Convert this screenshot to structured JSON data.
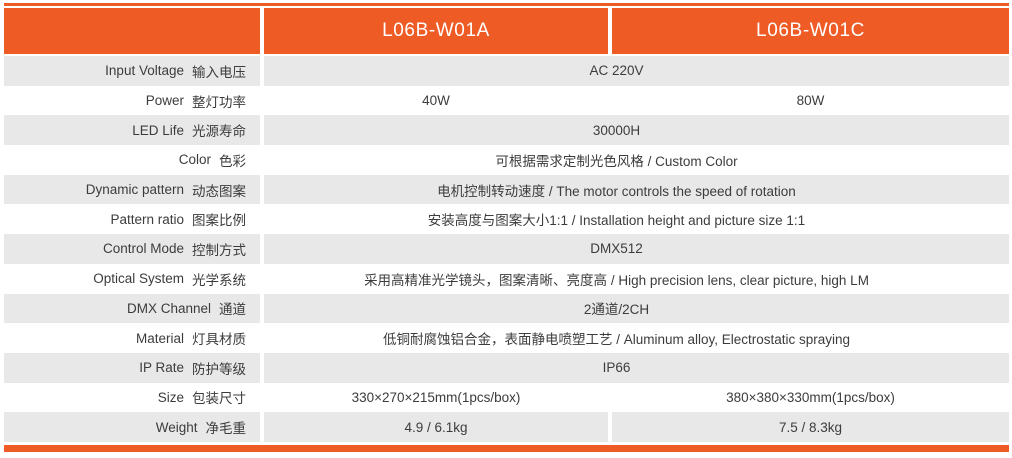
{
  "colors": {
    "accent": "#EF5B25",
    "row_alt": "#E8E8E8",
    "text": "#3C3C3C",
    "header_text": "#FFFFFF"
  },
  "header": {
    "columns": [
      {
        "label": ""
      },
      {
        "label": "L06B-W01A"
      },
      {
        "label": "L06B-W01C"
      }
    ]
  },
  "table": {
    "rows": [
      {
        "label_en": "Input Voltage",
        "label_zh": "输入电压",
        "merged": true,
        "value": "AC 220V"
      },
      {
        "label_en": "Power",
        "label_zh": "整灯功率",
        "merged": false,
        "value_a": "40W",
        "value_c": "80W"
      },
      {
        "label_en": "LED Life",
        "label_zh": "光源寿命",
        "merged": true,
        "value": "30000H"
      },
      {
        "label_en": "Color",
        "label_zh": "色彩",
        "merged": true,
        "value": "可根据需求定制光色风格 / Custom Color"
      },
      {
        "label_en": "Dynamic pattern",
        "label_zh": "动态图案",
        "merged": true,
        "value": "电机控制转动速度 / The motor controls the speed of rotation"
      },
      {
        "label_en": "Pattern ratio",
        "label_zh": "图案比例",
        "merged": true,
        "value": "安装高度与图案大小1:1 / Installation height and picture size 1:1"
      },
      {
        "label_en": "Control Mode",
        "label_zh": "控制方式",
        "merged": true,
        "value": "DMX512"
      },
      {
        "label_en": "Optical System",
        "label_zh": "光学系统",
        "merged": true,
        "value": "采用高精准光学镜头，图案清晰、亮度高 / High precision lens, clear picture, high LM"
      },
      {
        "label_en": "DMX Channel",
        "label_zh": "通道",
        "merged": true,
        "value": "2通道/2CH"
      },
      {
        "label_en": "Material",
        "label_zh": "灯具材质",
        "merged": true,
        "value": "低铜耐腐蚀铝合金，表面静电喷塑工艺 / Aluminum alloy, Electrostatic spraying"
      },
      {
        "label_en": "IP Rate",
        "label_zh": "防护等级",
        "merged": true,
        "value": "IP66"
      },
      {
        "label_en": "Size",
        "label_zh": "包装尺寸",
        "merged": false,
        "value_a": "330×270×215mm(1pcs/box)",
        "value_c": "380×380×330mm(1pcs/box)"
      },
      {
        "label_en": "Weight",
        "label_zh": "净毛重",
        "merged": false,
        "value_a": "4.9 / 6.1kg",
        "value_c": "7.5 / 8.3kg"
      }
    ]
  }
}
